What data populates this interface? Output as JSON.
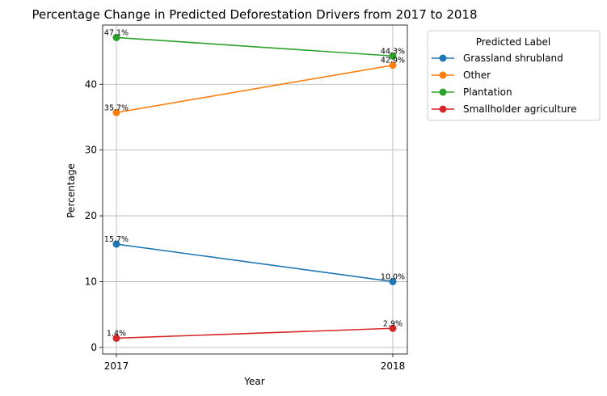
{
  "chart_data": {
    "type": "line",
    "title": "Percentage Change in Predicted Deforestation Drivers from 2017 to 2018",
    "xlabel": "Year",
    "ylabel": "Percentage",
    "categories": [
      "2017",
      "2018"
    ],
    "ylim": [
      -1,
      49
    ],
    "yticks": [
      0,
      10,
      20,
      30,
      40
    ],
    "grid": true,
    "legend": {
      "title": "Predicted Label",
      "placement": "outside-right"
    },
    "series": [
      {
        "name": "Grassland shrubland",
        "values": [
          15.7,
          10.0
        ],
        "labels": [
          "15.7%",
          "10.0%"
        ],
        "color": "#1f77b4"
      },
      {
        "name": "Other",
        "values": [
          35.7,
          42.9
        ],
        "labels": [
          "35.7%",
          "42.9%"
        ],
        "color": "#ff7f0e"
      },
      {
        "name": "Plantation",
        "values": [
          47.1,
          44.3
        ],
        "labels": [
          "47.1%",
          "44.3%"
        ],
        "color": "#2ca02c"
      },
      {
        "name": "Smallholder agriculture",
        "values": [
          1.4,
          2.9
        ],
        "labels": [
          "1.4%",
          "2.9%"
        ],
        "color": "#d62728"
      }
    ]
  }
}
